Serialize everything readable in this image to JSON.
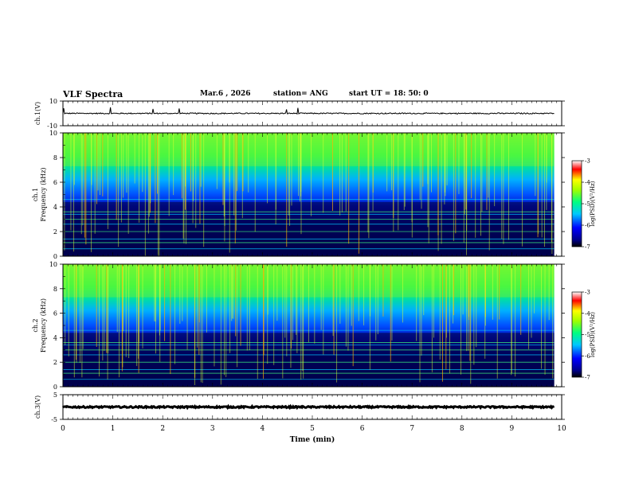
{
  "header": {
    "title": "VLF Spectra",
    "date": "Mar.6  , 2026",
    "station": "station= ANG",
    "start": "start  UT  =   18: 50: 0"
  },
  "chart_data": {
    "type": "heatmap",
    "title": "VLF Spectra",
    "xlabel": "Time  (min)",
    "xlim": [
      0,
      10
    ],
    "xticks": [
      "0",
      "1",
      "2",
      "3",
      "4",
      "5",
      "6",
      "7",
      "8",
      "9",
      "10"
    ],
    "panels": [
      {
        "name": "ch.1(V)",
        "kind": "waveform",
        "ylabel": "ch.1(V)",
        "ylim": [
          -10,
          10
        ],
        "yticks": [
          "10",
          "-10"
        ],
        "baseline": 0
      },
      {
        "name": "ch.1 spectrogram",
        "kind": "spectrogram",
        "ylabel": "ch.1",
        "ylabel2": "Frequency  (kHz)",
        "ylim": [
          0,
          10
        ],
        "yticks": [
          "0",
          "2",
          "4",
          "6",
          "8",
          "10"
        ],
        "data_end_min": 9.85,
        "colorbar": {
          "label": "log(PSD)(V²/Hz)",
          "range": [
            -7,
            -3
          ],
          "ticks": [
            "-3",
            "-4",
            "-5",
            "-6",
            "-7"
          ]
        }
      },
      {
        "name": "ch.2 spectrogram",
        "kind": "spectrogram",
        "ylabel": "ch.2",
        "ylabel2": "Frequency  (kHz)",
        "ylim": [
          0,
          10
        ],
        "yticks": [
          "0",
          "2",
          "4",
          "6",
          "8",
          "10"
        ],
        "data_end_min": 9.85,
        "colorbar": {
          "label": "log(PSD)(V²/Hz)",
          "range": [
            -7,
            -3
          ],
          "ticks": [
            "-3",
            "-4",
            "-5",
            "-6",
            "-7"
          ]
        }
      },
      {
        "name": "ch.3(V)",
        "kind": "waveform",
        "ylabel": "ch.3(V)",
        "ylim": [
          -5,
          5
        ],
        "yticks": [
          "5",
          "-5"
        ],
        "baseline": 0
      }
    ],
    "colors": {
      "scale": [
        "#00004a",
        "#0000ff",
        "#00c8ff",
        "#00ff80",
        "#ffff00",
        "#ff0000",
        "#ffffff"
      ]
    }
  }
}
